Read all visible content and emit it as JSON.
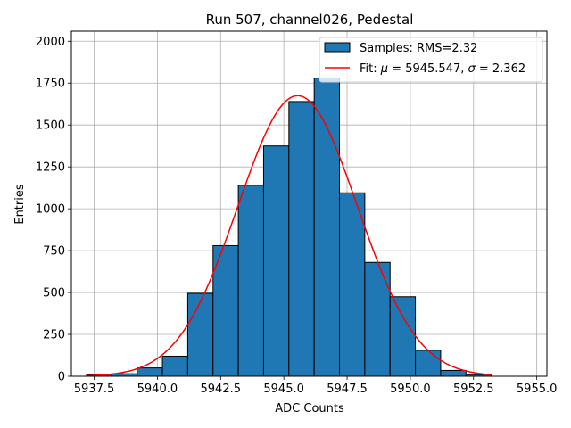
{
  "chart_data": {
    "type": "bar",
    "title": "Run 507, channel026, Pedestal",
    "xlabel": "ADC Counts",
    "ylabel": "Entries",
    "xlim": [
      5936.6,
      5955.4
    ],
    "ylim": [
      0,
      2060
    ],
    "x_ticks": [
      5937.5,
      5940.0,
      5942.5,
      5945.0,
      5947.5,
      5950.0,
      5952.5,
      5955.0
    ],
    "x_tick_labels": [
      "5937.5",
      "5940.0",
      "5942.5",
      "5945.0",
      "5947.5",
      "5950.0",
      "5952.5",
      "5955.0"
    ],
    "y_ticks": [
      0,
      250,
      500,
      750,
      1000,
      1250,
      1500,
      1750,
      2000
    ],
    "y_tick_labels": [
      "0",
      "250",
      "500",
      "750",
      "1000",
      "1250",
      "1500",
      "1750",
      "2000"
    ],
    "grid": true,
    "legend_position": "top-right",
    "histogram": {
      "name": "Samples: RMS=2.32",
      "color": "#1f77b4",
      "edge_color": "#000000",
      "bin_edges": [
        5937.2,
        5938.2,
        5939.2,
        5940.2,
        5941.2,
        5942.2,
        5943.2,
        5944.2,
        5945.2,
        5946.2,
        5947.2,
        5948.2,
        5949.2,
        5950.2,
        5951.2,
        5952.2,
        5953.2
      ],
      "counts": [
        10,
        15,
        50,
        120,
        495,
        780,
        1140,
        1375,
        1640,
        1780,
        1095,
        680,
        475,
        155,
        35,
        10
      ]
    },
    "fit": {
      "name_prefix": "Fit: ",
      "name_mu": "μ",
      "name_mid": " = 5945.547, ",
      "name_sigma": "σ",
      "name_suffix": " = 2.362",
      "color": "#ff0000",
      "mu": 5945.547,
      "sigma": 2.362,
      "amplitude": 1675,
      "x_range": [
        5937.2,
        5953.2
      ]
    }
  }
}
